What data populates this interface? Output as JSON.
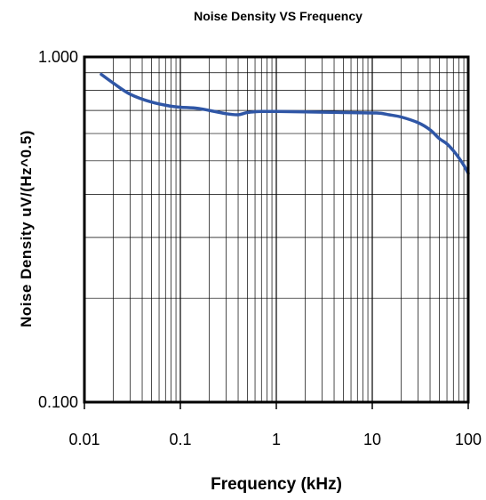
{
  "chart_data": {
    "type": "line",
    "title": "Noise Density  VS Frequency",
    "xlabel": "Frequency (kHz)",
    "ylabel": "Noise Density uV/(Hz^0.5)",
    "xscale": "log",
    "yscale": "log",
    "xlim": [
      0.01,
      100
    ],
    "ylim": [
      0.1,
      1.0
    ],
    "xticks": [
      "0.01",
      "0.1",
      "1",
      "10",
      "100"
    ],
    "yticks": [
      "0.100",
      "1.000"
    ],
    "grid": true,
    "legend": "none",
    "series": [
      {
        "color": "#2f56a6",
        "x": [
          0.015,
          0.02,
          0.03,
          0.05,
          0.08,
          0.1,
          0.15,
          0.2,
          0.3,
          0.4,
          0.5,
          0.7,
          1,
          2,
          5,
          10,
          12,
          15,
          20,
          30,
          40,
          50,
          60,
          70,
          80,
          90,
          100
        ],
        "y": [
          0.89,
          0.84,
          0.78,
          0.74,
          0.72,
          0.715,
          0.71,
          0.7,
          0.685,
          0.68,
          0.69,
          0.695,
          0.695,
          0.693,
          0.69,
          0.688,
          0.687,
          0.68,
          0.67,
          0.645,
          0.615,
          0.58,
          0.56,
          0.535,
          0.51,
          0.485,
          0.46
        ]
      }
    ]
  }
}
